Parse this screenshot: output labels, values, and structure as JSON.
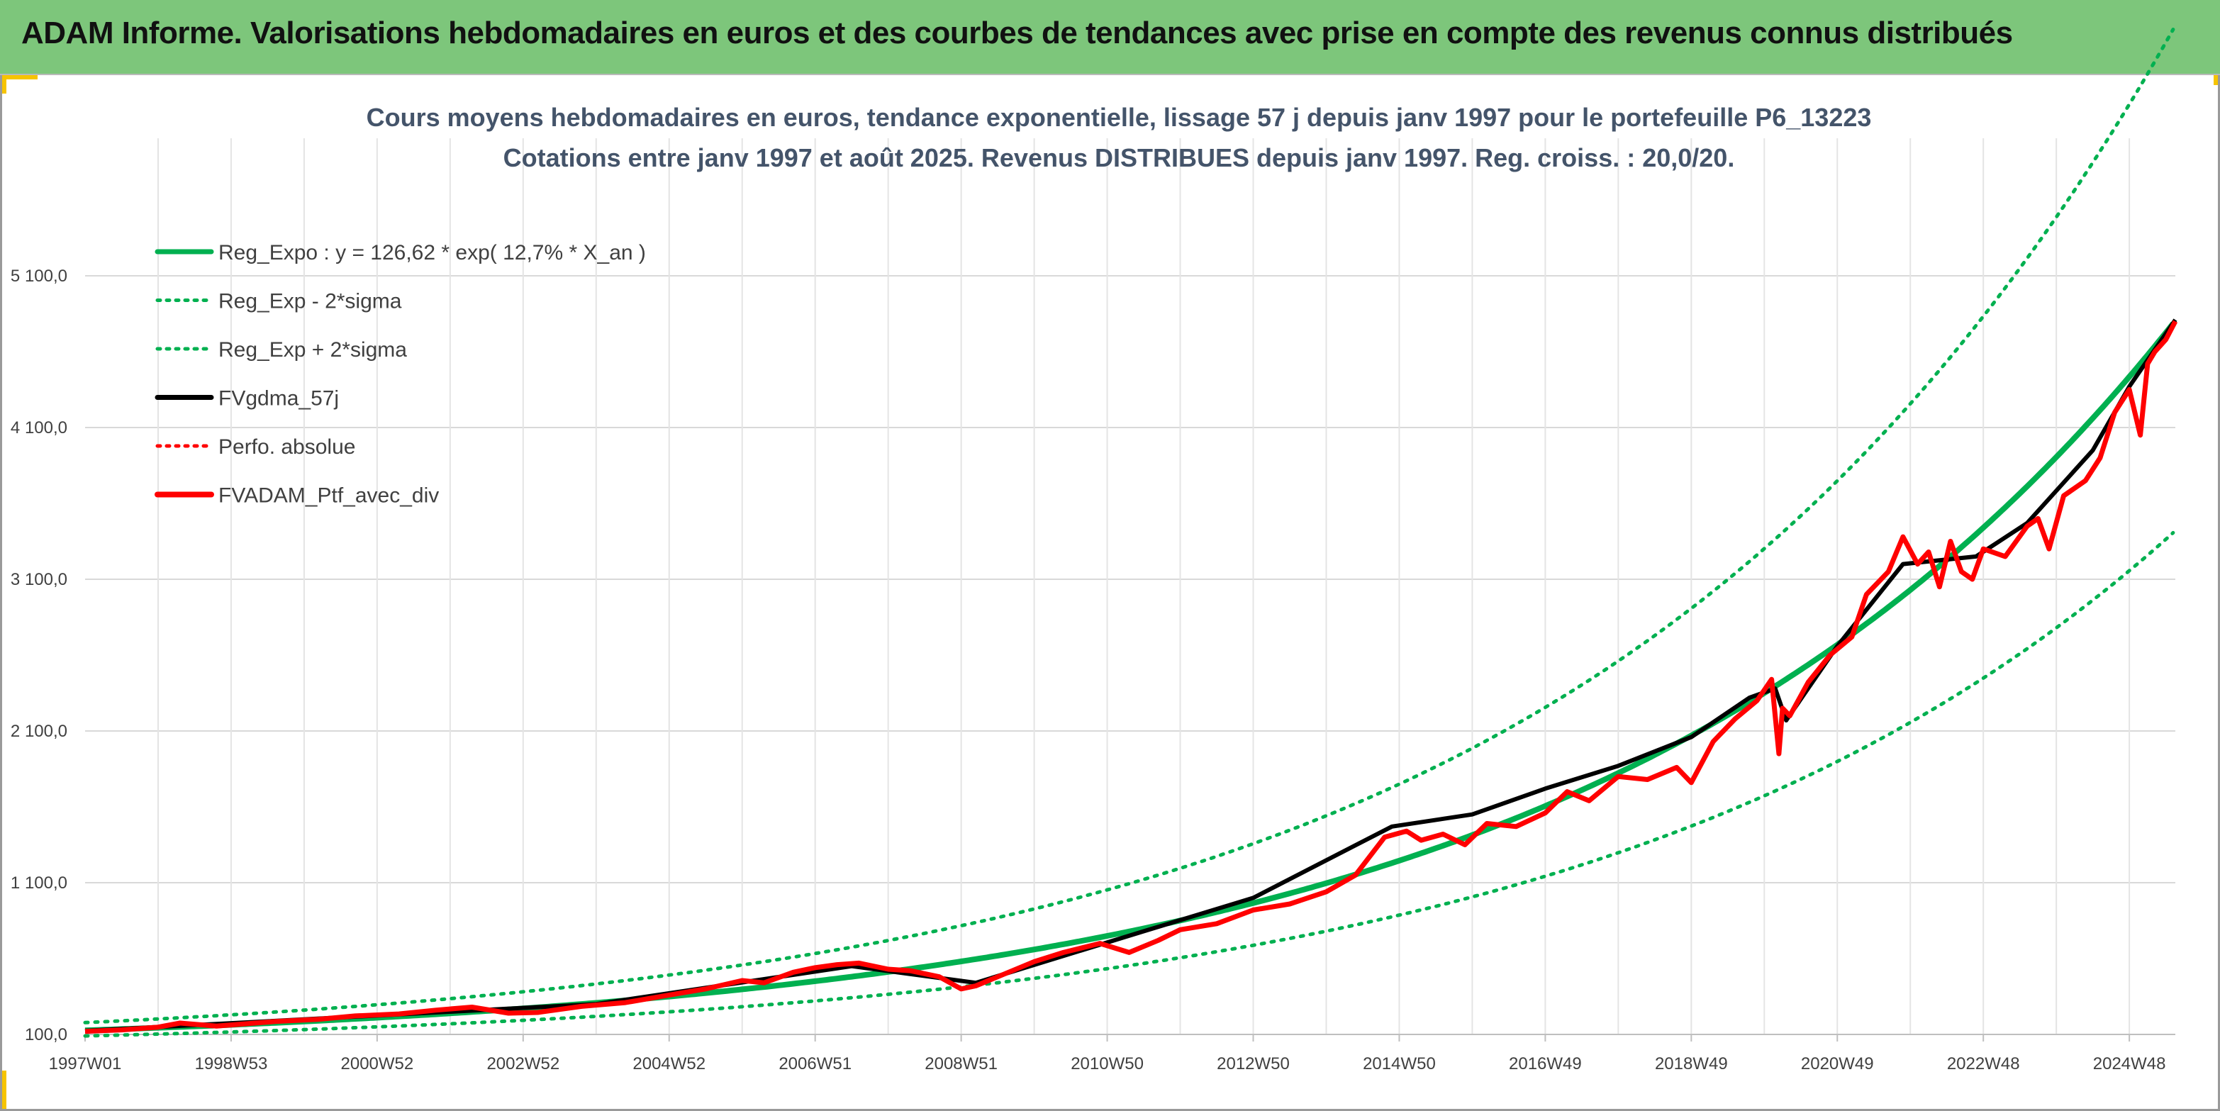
{
  "header": {
    "title": "ADAM Informe. Valorisations hebdomadaires en euros et des courbes de tendances avec prise en compte des revenus connus distribués"
  },
  "colors": {
    "header_bg": "#7dc67b",
    "accent": "#f6c400",
    "reg_expo": "#00b050",
    "fvgdma": "#000000",
    "portfolio": "#ff0000",
    "title_text": "#44546a"
  },
  "chart_data": {
    "type": "line",
    "title_line1": "Cours moyens hebdomadaires en euros, tendance exponentielle, lissage 57 j depuis janv 1997 pour le portefeuille P6_13223",
    "title_line2": "Cotations entre janv 1997 et août 2025. Revenus DISTRIBUES depuis janv 1997. Reg. croiss. : 20,0/20.",
    "x_range": [
      1997.0,
      2025.63
    ],
    "xticks": [
      "1997W01",
      "1998W53",
      "2000W52",
      "2002W52",
      "2004W52",
      "2006W51",
      "2008W51",
      "2010W50",
      "2012W50",
      "2014W50",
      "2016W49",
      "2018W49",
      "2020W49",
      "2022W48",
      "2024W48"
    ],
    "xtick_years": [
      1997.0,
      1999.0,
      2001.0,
      2003.0,
      2005.0,
      2007.0,
      2009.0,
      2011.0,
      2013.0,
      2015.0,
      2017.0,
      2019.0,
      2021.0,
      2023.0,
      2025.0
    ],
    "yticks": [
      "100,0",
      "1 100,0",
      "2 100,0",
      "3 100,0",
      "4 100,0",
      "5 100,0"
    ],
    "ytick_values": [
      100,
      1100,
      2100,
      3100,
      4100,
      5100
    ],
    "ylim": [
      100,
      6400
    ],
    "grid": true,
    "legend_position": "top-left",
    "regression": {
      "a": 126.62,
      "rate": 0.127,
      "sigma_log": 0.17
    },
    "series": [
      {
        "name": "Reg_Expo : y = 126,62 * exp( 12,7% *  X_an )",
        "color": "#00b050",
        "style": "solid"
      },
      {
        "name": "Reg_Exp - 2*sigma",
        "color": "#00b050",
        "style": "dotted"
      },
      {
        "name": "Reg_Exp + 2*sigma",
        "color": "#00b050",
        "style": "dotted"
      },
      {
        "name": "FVgdma_57j",
        "color": "#000000",
        "style": "solid",
        "x": [
          1997.0,
          2004.0,
          2007.5,
          2009.2,
          2011.5,
          2013.0,
          2014.9,
          2016.0,
          2017.0,
          2018.0,
          2019.0,
          2019.8,
          2020.15,
          2020.3,
          2021.0,
          2021.9,
          2022.9,
          2023.6,
          2024.5,
          2025.0,
          2025.63
        ],
        "y": [
          124,
          300,
          550,
          440,
          780,
          1000,
          1470,
          1550,
          1720,
          1870,
          2060,
          2320,
          2380,
          2170,
          2660,
          3200,
          3250,
          3470,
          3950,
          4370,
          4810
        ]
      },
      {
        "name": "Perfo. absolue",
        "color": "#ff0000",
        "style": "dotted"
      },
      {
        "name": "FVADAM_Ptf_avec_div",
        "color": "#ff0000",
        "style": "solid",
        "x": [
          1997.0,
          1997.5,
          1998.0,
          1998.3,
          1998.8,
          1999.2,
          1999.6,
          2000.2,
          2000.7,
          2001.3,
          2001.8,
          2002.3,
          2002.8,
          2003.2,
          2003.8,
          2004.4,
          2005.0,
          2005.5,
          2006.0,
          2006.3,
          2006.7,
          2007.0,
          2007.3,
          2007.6,
          2008.0,
          2008.3,
          2008.7,
          2009.0,
          2009.2,
          2009.5,
          2010.0,
          2010.4,
          2010.9,
          2011.3,
          2011.7,
          2012.0,
          2012.5,
          2013.0,
          2013.5,
          2014.0,
          2014.4,
          2014.8,
          2015.1,
          2015.3,
          2015.6,
          2015.9,
          2016.2,
          2016.6,
          2017.0,
          2017.3,
          2017.6,
          2018.0,
          2018.4,
          2018.8,
          2019.0,
          2019.3,
          2019.6,
          2019.9,
          2020.1,
          2020.2,
          2020.25,
          2020.35,
          2020.6,
          2020.9,
          2021.2,
          2021.4,
          2021.7,
          2021.9,
          2022.1,
          2022.25,
          2022.4,
          2022.55,
          2022.7,
          2022.85,
          2023.0,
          2023.3,
          2023.6,
          2023.75,
          2023.9,
          2024.1,
          2024.4,
          2024.6,
          2024.8,
          2025.0,
          2025.15,
          2025.25,
          2025.35,
          2025.5,
          2025.63
        ],
        "y": [
          120,
          130,
          148,
          175,
          155,
          170,
          185,
          200,
          222,
          235,
          260,
          280,
          240,
          245,
          285,
          310,
          360,
          400,
          455,
          440,
          510,
          540,
          560,
          570,
          530,
          520,
          480,
          400,
          420,
          480,
          580,
          640,
          700,
          640,
          720,
          790,
          830,
          920,
          960,
          1040,
          1150,
          1400,
          1440,
          1380,
          1420,
          1350,
          1490,
          1470,
          1560,
          1700,
          1640,
          1800,
          1780,
          1860,
          1760,
          2030,
          2180,
          2300,
          2440,
          1950,
          2250,
          2200,
          2420,
          2600,
          2720,
          3000,
          3150,
          3380,
          3200,
          3280,
          3050,
          3350,
          3150,
          3100,
          3300,
          3250,
          3450,
          3500,
          3300,
          3650,
          3750,
          3900,
          4200,
          4350,
          4050,
          4520,
          4600,
          4680,
          4800
        ]
      }
    ]
  }
}
